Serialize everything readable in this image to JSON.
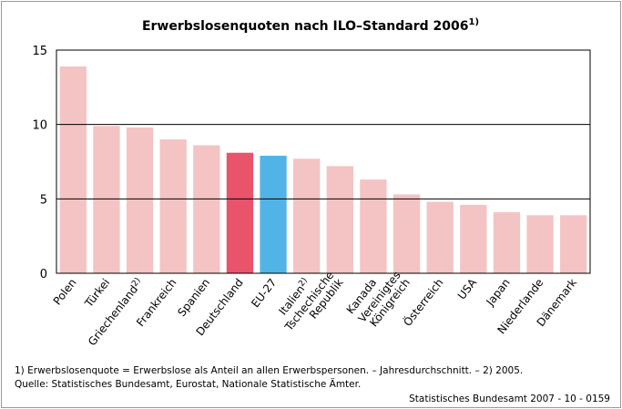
{
  "chart_data": {
    "type": "bar",
    "title": "Erwerbslosenquoten nach ILO–Standard 2006",
    "title_note": "1)",
    "categories": [
      "Polen",
      "Türkei",
      "Griechenland",
      "Frankreich",
      "Spanien",
      "Deutschland",
      "EU-27",
      "Italien",
      "Tschechische\nRepublik",
      "Kanada",
      "Vereinigtes\nKönigreich",
      "Österreich",
      "USA",
      "Japan",
      "Niederlande",
      "Dänemark"
    ],
    "category_notes": [
      null,
      null,
      "2)",
      null,
      null,
      null,
      null,
      "2)",
      null,
      null,
      null,
      null,
      null,
      null,
      null,
      null
    ],
    "values": [
      13.9,
      9.9,
      9.8,
      9.0,
      8.6,
      8.1,
      7.9,
      7.7,
      7.2,
      6.3,
      5.3,
      4.8,
      4.6,
      4.1,
      3.9,
      3.9
    ],
    "colors": [
      "#f4c3c3",
      "#f4c3c3",
      "#f4c3c3",
      "#f4c3c3",
      "#f4c3c3",
      "#e9546b",
      "#52b4e6",
      "#f4c3c3",
      "#f4c3c3",
      "#f4c3c3",
      "#f4c3c3",
      "#f4c3c3",
      "#f4c3c3",
      "#f4c3c3",
      "#f4c3c3",
      "#f4c3c3"
    ],
    "ylim": [
      0,
      15
    ],
    "yticks": [
      0,
      5,
      10,
      15
    ],
    "grid": true,
    "footnotes": [
      "1) Erwerbslosenquote = Erwerbslose als Anteil an allen Erwerbspersonen. – Jahresdurchschnitt. – 2) 2005.",
      "Quelle: Statistisches Bundesamt, Eurostat, Nationale Statistische Ämter."
    ],
    "source": "Statistisches Bundesamt 2007 - 10 - 0159"
  }
}
